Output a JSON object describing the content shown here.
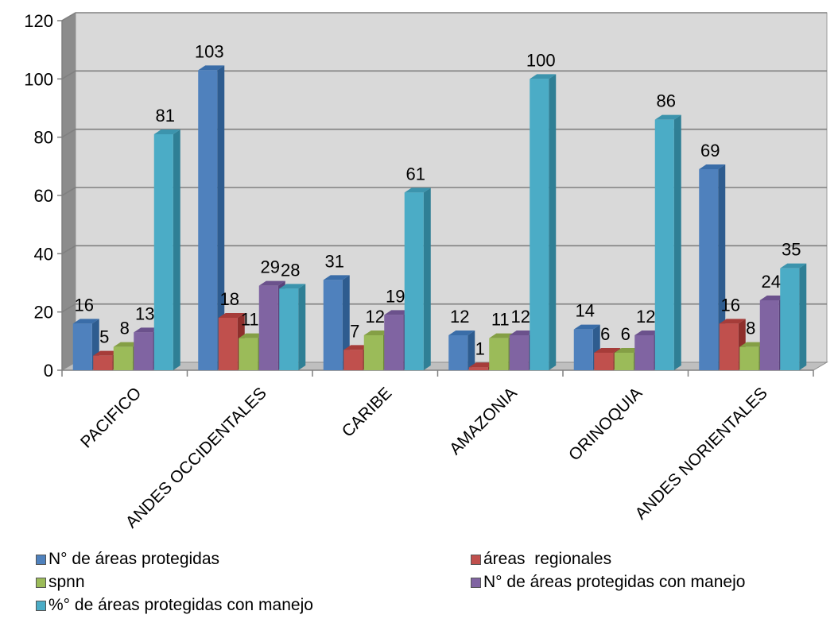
{
  "chart_data": {
    "type": "bar",
    "title": "",
    "xlabel": "",
    "ylabel": "",
    "ylim": [
      0,
      120
    ],
    "yticks": [
      "0",
      "20",
      "40",
      "60",
      "80",
      "100",
      "120"
    ],
    "grid": true,
    "legend_position": "bottom",
    "categories": [
      "PACIFICO",
      "ANDES  OCCIDENTALES",
      "CARIBE",
      "AMAZONIA",
      "ORINOQUIA",
      "ANDES NORIENTALES"
    ],
    "series": [
      {
        "name": "N° de áreas protegidas",
        "values": [
          16,
          103,
          31,
          12,
          14,
          69
        ],
        "color": "#4F81BD",
        "side": "#2E5C8F",
        "top": "#3A6DA8"
      },
      {
        "name": "áreas  regionales",
        "values": [
          5,
          18,
          7,
          1,
          6,
          16
        ],
        "color": "#C0504D",
        "side": "#8E2F2C",
        "top": "#A63C39"
      },
      {
        "name": "spnn",
        "values": [
          8,
          11,
          12,
          11,
          6,
          8
        ],
        "color": "#9BBB59",
        "side": "#6E8C35",
        "top": "#849F45"
      },
      {
        "name": "N° de áreas protegidas con manejo",
        "values": [
          13,
          29,
          19,
          12,
          12,
          24
        ],
        "color": "#8064A2",
        "side": "#5A427A",
        "top": "#6B518C"
      },
      {
        "name": "%° de áreas protegidas con manejo",
        "values": [
          81,
          28,
          61,
          100,
          86,
          35
        ],
        "color": "#4BACC6",
        "side": "#2F7F95",
        "top": "#3C94AD"
      }
    ]
  }
}
